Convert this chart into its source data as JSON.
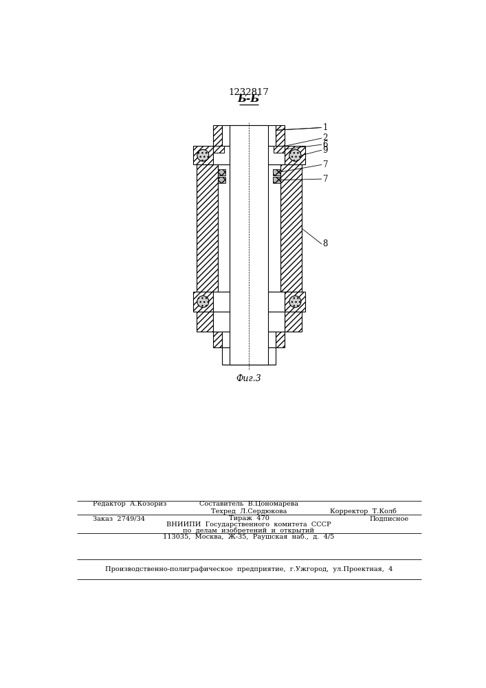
{
  "title": "1232817",
  "section_label": "Б-Б",
  "fig_label": "Фиг.3",
  "bg_color": "#ffffff",
  "line_color": "#000000",
  "footer_editor": "Редактор  А.Козориз",
  "footer_sostavitel": "Составитель  В.Цономарева",
  "footer_tekhred": "Техред  Л.Сердюкова",
  "footer_korrektor": "Корректор  Т.Колб",
  "footer_zakaz": "Заказ  2749/34",
  "footer_tirazh": "Тираж  470",
  "footer_podpisnoe": "Подписное",
  "footer_vnipi": "ВНИИПИ  Государственного  комитета  СССР",
  "footer_po_delam": "по  делам  изобретений  и  открытий",
  "footer_address": "113035,  Москва,  Ж-35,  Раушская  наб.,  д.  4/5",
  "footer_producer": "Производственно-полиграфическое  предприятие,  г.Ужгород,  ул.Проектная,  4"
}
